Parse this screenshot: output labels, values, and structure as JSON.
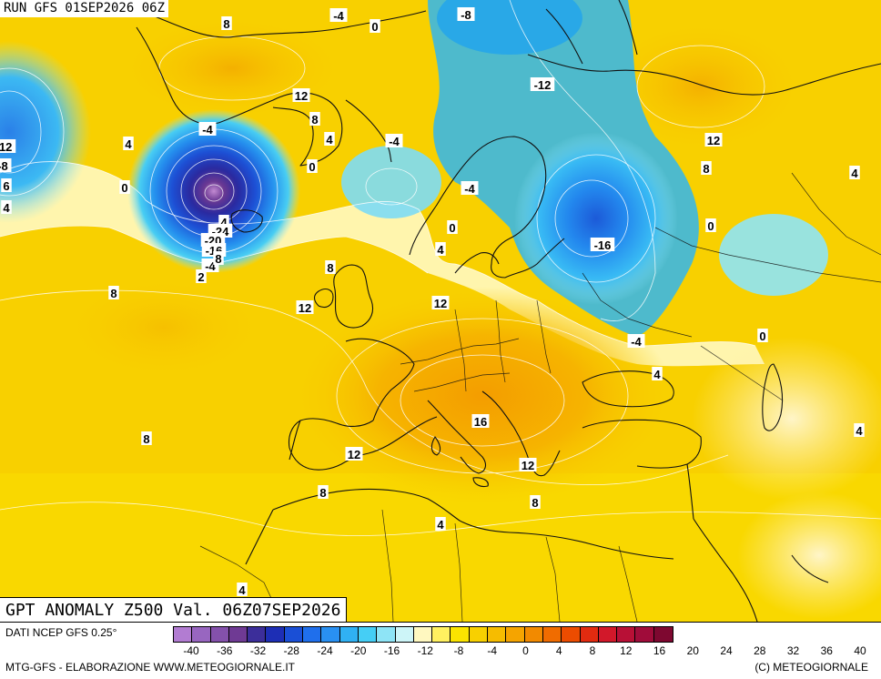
{
  "header": {
    "run_title": "RUN GFS 01SEP2026 06Z"
  },
  "map": {
    "title": "GPT ANOMALY Z500 Val. 06Z07SEP2026",
    "contour_labels": [
      "-4",
      "0",
      "-8",
      "8",
      "-12",
      "12",
      "-4",
      "8",
      "4",
      "4",
      "-4",
      "0",
      "0",
      "-4",
      "0",
      "12",
      "8",
      "4",
      "0",
      "-4",
      "-16",
      "4",
      "8",
      "12",
      "8",
      "12",
      "-4",
      "0",
      "4",
      "16",
      "12",
      "12",
      "8",
      "8",
      "8",
      "4",
      "4",
      "4",
      "4",
      "-24",
      "-20",
      "-16",
      "-12",
      "-8",
      "6",
      "2",
      "8",
      "4"
    ],
    "colors": {
      "land_border": "#111111",
      "contour_line": "#ffffff",
      "positive_fill": "#f6c300",
      "negative_fill": "#30b6f0"
    }
  },
  "legend": {
    "source": "DATI NCEP GFS 0.25°",
    "credit": "MTG-GFS - ELABORAZIONE WWW.METEOGIORNALE.IT",
    "copyright": "(C) METEOGIORNALE",
    "ticks": [
      "-40",
      "-36",
      "-32",
      "-28",
      "-24",
      "-20",
      "-16",
      "-12",
      "-8",
      "-4",
      "0",
      "4",
      "8",
      "12",
      "16",
      "20",
      "24",
      "28",
      "32",
      "36",
      "40"
    ],
    "colors": [
      "#b27cd2",
      "#9866c0",
      "#8451ab",
      "#6f3a94",
      "#3c2e9a",
      "#1d2eb5",
      "#1a4fd6",
      "#1f6fec",
      "#2990f2",
      "#30b1f3",
      "#45cef5",
      "#8ee4f6",
      "#cdf5f8",
      "#fff8c0",
      "#fff060",
      "#fbe400",
      "#f8d000",
      "#f6bc00",
      "#f5a400",
      "#f28a00",
      "#f06c00",
      "#ec4c00",
      "#e22b10",
      "#d2182a",
      "#b81036",
      "#a00c3a",
      "#7e0830"
    ]
  }
}
